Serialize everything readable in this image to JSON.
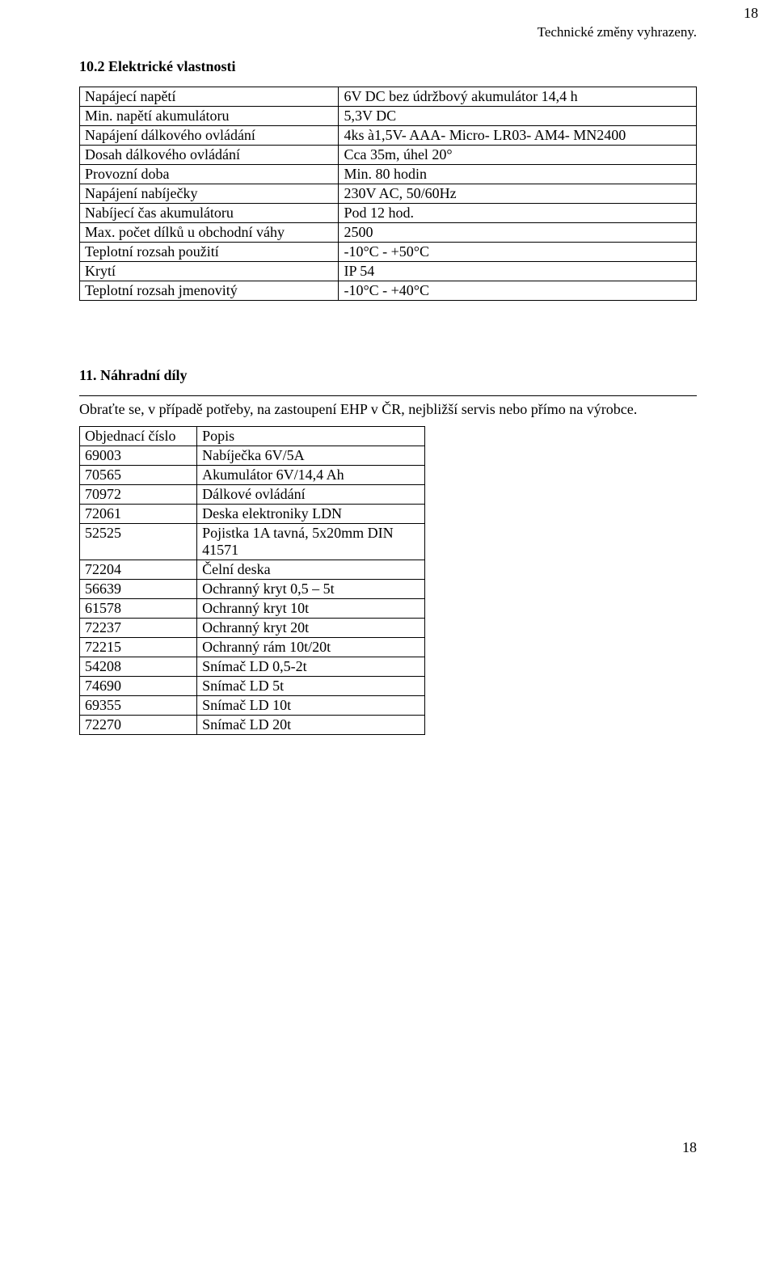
{
  "top_note": "Technické změny vyhrazeny.",
  "page_number_top": "18",
  "page_number_bottom": "18",
  "section1": {
    "heading": "10.2 Elektrické vlastnosti",
    "table": {
      "col_widths": [
        "42%",
        "58%"
      ],
      "rows": [
        [
          "Napájecí napětí",
          "6V DC bez údržbový akumulátor 14,4 h"
        ],
        [
          "Min. napětí akumulátoru",
          "5,3V DC"
        ],
        [
          "Napájení dálkového ovládání",
          "4ks à1,5V- AAA- Micro- LR03- AM4- MN2400"
        ],
        [
          "Dosah dálkového ovládání",
          "Cca 35m, úhel 20°"
        ],
        [
          "Provozní doba",
          "Min. 80 hodin"
        ],
        [
          "Napájení nabíječky",
          "230V AC, 50/60Hz"
        ],
        [
          "Nabíjecí čas akumulátoru",
          "Pod 12 hod."
        ],
        [
          "Max. počet dílků u obchodní váhy",
          "2500"
        ],
        [
          "Teplotní rozsah použití",
          "-10°C - +50°C"
        ],
        [
          "Krytí",
          "IP 54"
        ],
        [
          "Teplotní rozsah jmenovitý",
          "-10°C - +40°C"
        ]
      ]
    }
  },
  "section2": {
    "heading": "11. Náhradní díly",
    "intro": "Obraťte se, v případě potřeby,  na zastoupení EHP v ČR, nejbližší servis nebo přímo na výrobce.",
    "table": {
      "header": [
        "Objednací číslo",
        "Popis"
      ],
      "col_widths": [
        "34%",
        "66%"
      ],
      "rows": [
        [
          "69003",
          "Nabíječka 6V/5A"
        ],
        [
          "70565",
          "Akumulátor 6V/14,4 Ah"
        ],
        [
          "70972",
          "Dálkové ovládání"
        ],
        [
          "72061",
          "Deska elektroniky LDN"
        ],
        [
          "52525",
          "Pojistka 1A tavná, 5x20mm DIN 41571"
        ],
        [
          "72204",
          "Čelní deska"
        ],
        [
          "56639",
          "Ochranný kryt 0,5 – 5t"
        ],
        [
          "61578",
          "Ochranný kryt 10t"
        ],
        [
          "72237",
          "Ochranný kryt 20t"
        ],
        [
          "72215",
          "Ochranný rám 10t/20t"
        ],
        [
          "54208",
          "Snímač LD 0,5-2t"
        ],
        [
          "74690",
          "Snímač LD 5t"
        ],
        [
          "69355",
          "Snímač LD 10t"
        ],
        [
          "72270",
          "Snímač LD 20t"
        ]
      ]
    }
  }
}
